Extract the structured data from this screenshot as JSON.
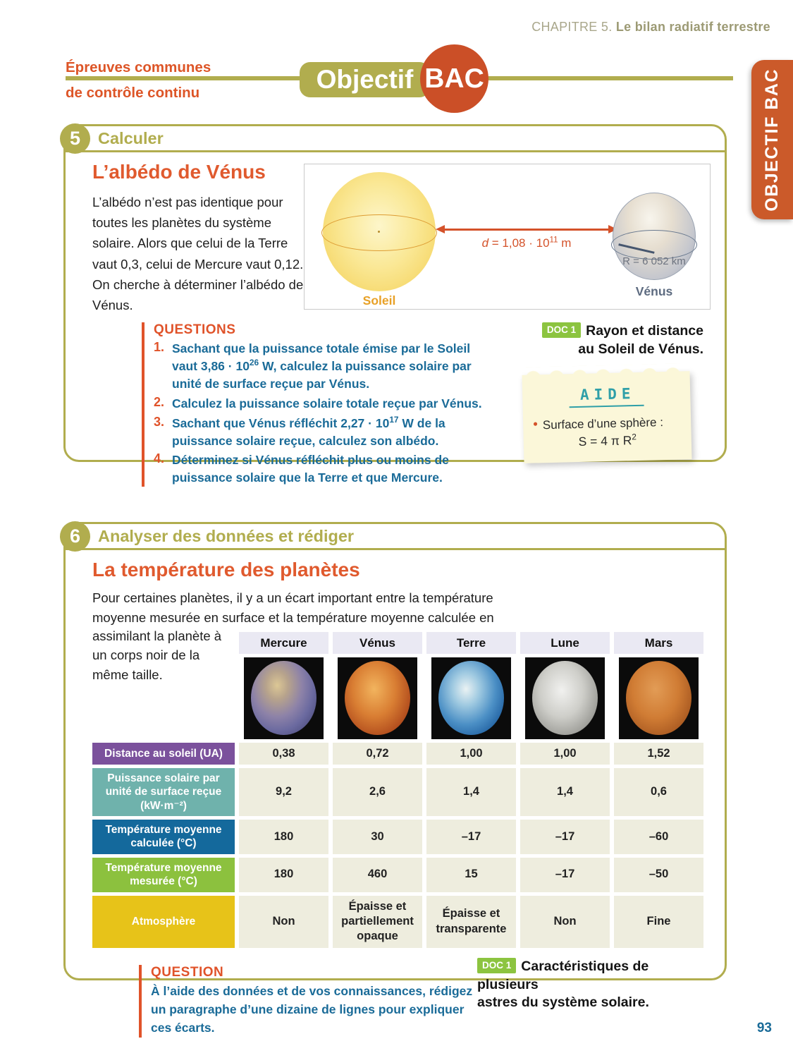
{
  "header": {
    "chapter_label": "CHAPITRE 5.",
    "chapter_title": "Le bilan radiatif terrestre",
    "side_tab": "OBJECTIF BAC",
    "page_number": "93"
  },
  "banner": {
    "eyebrow_line1": "Épreuves communes",
    "eyebrow_line2": "de contrôle continu",
    "badge_left": "Objectif",
    "badge_right": "BAC"
  },
  "colors": {
    "olive": "#b1ad4e",
    "orange_accent": "#dd5527",
    "orange_tab": "#cb5a2a",
    "blue_text": "#1a6b98",
    "doc_badge_green": "#8cc440",
    "row_purple": "#7b519c",
    "row_teal": "#6fb2ac",
    "row_blue": "#14699c",
    "row_green": "#8cc13e",
    "row_yellow": "#e7c319",
    "cell_cream": "#eeedde"
  },
  "exercise5": {
    "number": "5",
    "skill": "Calculer",
    "title": "L’albédo de Vénus",
    "intro": "L’albédo n’est pas identique pour toutes les planètes du système solaire. Alors que celui de la Terre vaut 0,3, celui de Mercure vaut 0,12. On cherche à déterminer l’albédo de Vénus.",
    "diagram": {
      "sun_label": "Soleil",
      "venus_label": "Vénus",
      "venus_radius": "R = 6 052 km",
      "distance_var": "d",
      "distance_eq": " = 1,08 · 10",
      "distance_exp": "11",
      "distance_unit": " m"
    },
    "questions_title": "QUESTIONS",
    "questions": [
      {
        "num": "1.",
        "pre": "Sachant que la puissance totale émise par le Soleil vaut 3,86 · 10",
        "sup": "26",
        "post": " W, calculez la puissance solaire par unité de surface reçue par Vénus."
      },
      {
        "num": "2.",
        "pre": "Calculez la puissance solaire totale reçue par Vénus.",
        "sup": "",
        "post": ""
      },
      {
        "num": "3.",
        "pre": "Sachant que Vénus réfléchit 2,27 · 10",
        "sup": "17",
        "post": " W de la puissance solaire reçue, calculez son albédo."
      },
      {
        "num": "4.",
        "pre": "Déterminez si Vénus réfléchit plus ou moins de puissance solaire que la Terre et que Mercure.",
        "sup": "",
        "post": ""
      }
    ],
    "doc_badge": "DOC 1",
    "doc_caption_line1": "Rayon et distance",
    "doc_caption_line2": "au Soleil de Vénus.",
    "aide": {
      "title": "AIDE",
      "bullet_text": "Surface d’une sphère :",
      "formula_pre": "S = 4 π R",
      "formula_sup": "2"
    }
  },
  "exercise6": {
    "number": "6",
    "skill": "Analyser des données et rédiger",
    "title": "La température des planètes",
    "intro_main": "Pour certaines planètes, il y a un écart important entre la température moyenne mesurée en surface et la température moyenne calculée en",
    "intro_side": "assimilant la planète à un corps noir de la même taille.",
    "table": {
      "columns": [
        "Mercure",
        "Vénus",
        "Terre",
        "Lune",
        "Mars"
      ],
      "rows": [
        {
          "label": "Distance au soleil (UA)",
          "values": [
            "0,38",
            "0,72",
            "1,00",
            "1,00",
            "1,52"
          ]
        },
        {
          "label": "Puissance solaire par unité de surface reçue (kW·m⁻²)",
          "values": [
            "9,2",
            "2,6",
            "1,4",
            "1,4",
            "0,6"
          ]
        },
        {
          "label": "Température moyenne calculée (°C)",
          "values": [
            "180",
            "30",
            "–17",
            "–17",
            "–60"
          ]
        },
        {
          "label": "Température moyenne mesurée (°C)",
          "values": [
            "180",
            "460",
            "15",
            "–17",
            "–50"
          ]
        },
        {
          "label": "Atmosphère",
          "values": [
            "Non",
            "Épaisse et partiellement opaque",
            "Épaisse et transparente",
            "Non",
            "Fine"
          ]
        }
      ]
    },
    "doc_badge": "DOC 1",
    "doc_caption_line1": "Caractéristiques de plusieurs",
    "doc_caption_line2": "astres du système solaire.",
    "question_title": "QUESTION",
    "question_line1": "À l’aide des données et de vos connaissances, rédigez",
    "question_line2": "un paragraphe d’une dizaine de lignes pour expliquer ces écarts."
  }
}
